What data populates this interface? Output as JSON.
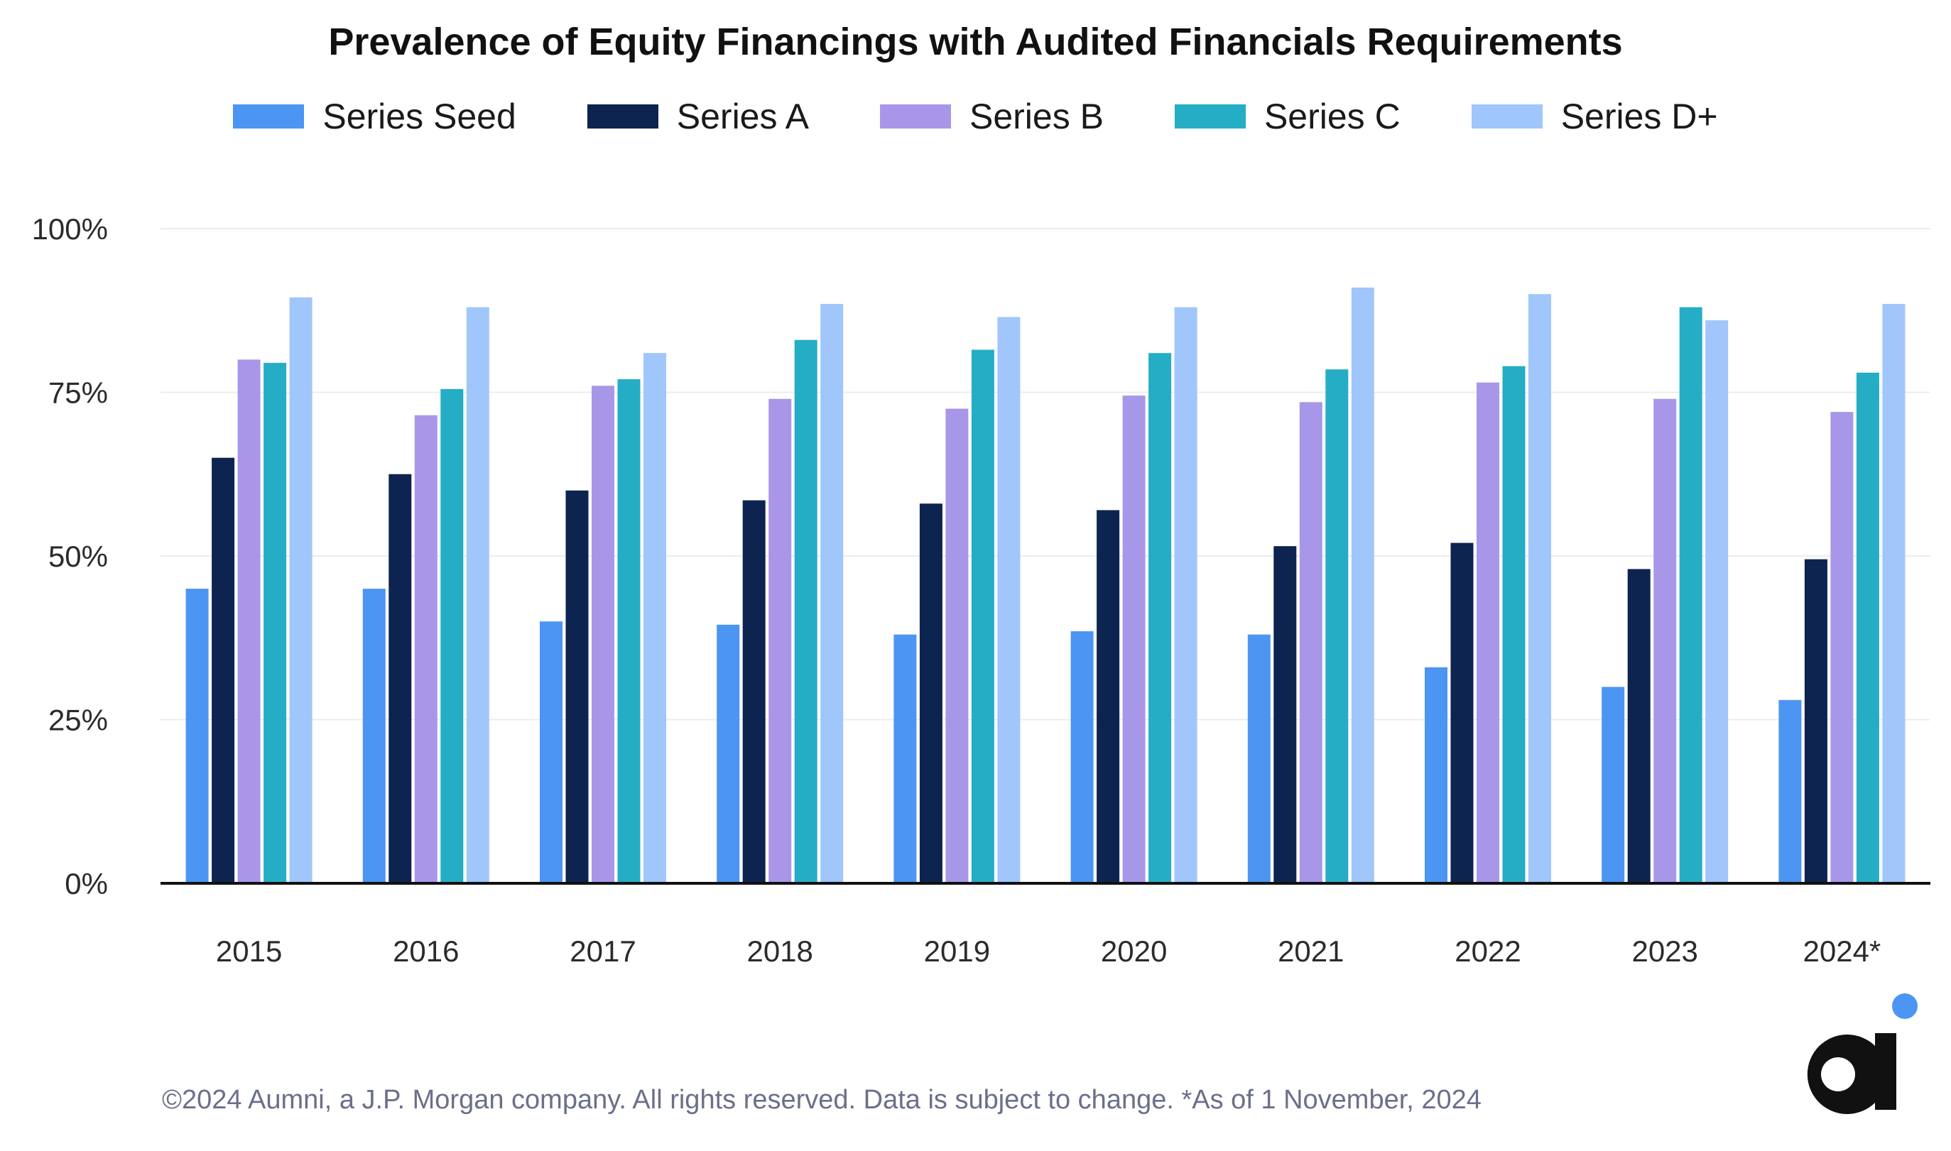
{
  "chart_data": {
    "type": "bar",
    "title": "Prevalence of Equity Financings with Audited Financials Requirements",
    "xlabel": "",
    "ylabel": "",
    "categories": [
      "2015",
      "2016",
      "2017",
      "2018",
      "2019",
      "2020",
      "2021",
      "2022",
      "2023",
      "2024*"
    ],
    "y_ticks": [
      "0%",
      "25%",
      "50%",
      "75%",
      "100%"
    ],
    "ylim": [
      0,
      100
    ],
    "grid": true,
    "legend_position": "top-center",
    "series": [
      {
        "name": "Series Seed",
        "color": "#4C95F2",
        "values": [
          45,
          45,
          40,
          39.5,
          38,
          38.5,
          38,
          33,
          30,
          28
        ]
      },
      {
        "name": "Series A",
        "color": "#0D2350",
        "values": [
          65,
          62.5,
          60,
          58.5,
          58,
          57,
          51.5,
          52,
          48,
          49.5
        ]
      },
      {
        "name": "Series B",
        "color": "#A897E8",
        "values": [
          80,
          71.5,
          76,
          74,
          72.5,
          74.5,
          73.5,
          76.5,
          74,
          72
        ]
      },
      {
        "name": "Series C",
        "color": "#25ADC6",
        "values": [
          79.5,
          75.5,
          77,
          83,
          81.5,
          81,
          78.5,
          79,
          88,
          78
        ]
      },
      {
        "name": "Series D+",
        "color": "#A0C6FB",
        "values": [
          89.5,
          88,
          81,
          88.5,
          86.5,
          88,
          91,
          90,
          86,
          88.5
        ]
      }
    ]
  },
  "footer": "©2024 Aumni, a J.P. Morgan company. All rights reserved. Data is subject to change. *As of 1 November, 2024",
  "logo": {
    "name": "aumni-logo",
    "letter_color": "#111111",
    "dot_color": "#4C95F2"
  }
}
